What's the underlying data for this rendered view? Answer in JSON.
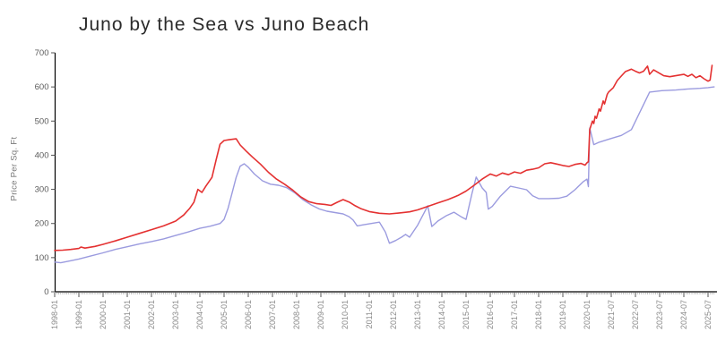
{
  "page": {
    "title": "Juno by the Sea vs Juno Beach"
  },
  "chart_data": {
    "type": "line",
    "title": "Juno by the Sea vs Juno Beach",
    "xlabel": "",
    "ylabel": "Price Per Sq. Ft",
    "ylim": [
      0,
      700
    ],
    "yticks": [
      0,
      100,
      200,
      300,
      400,
      500,
      600,
      700
    ],
    "grid": false,
    "legend": "none",
    "x_tick_labels": [
      "1998-01",
      "1999-01",
      "2000-01",
      "2001-01",
      "2002-01",
      "2003-01",
      "2004-01",
      "2005-01",
      "2006-01",
      "2007-01",
      "2008-01",
      "2009-01",
      "2010-01",
      "2011-01",
      "2012-01",
      "2013-01",
      "2014-01",
      "2015-01",
      "2016-01",
      "2017-01",
      "2018-01",
      "2019-01",
      "2020-01",
      "2021-07",
      "2022-07",
      "2023-07",
      "2024-07",
      "2025-07"
    ],
    "x_axis_note": "monthly axis; 2020-01 to 2021-07 span is compressed (18 months in one label gap)",
    "colors": {
      "axis": "#000000",
      "major_tick": "#555555",
      "minor_tick": "#b3b3b3",
      "tick_label": "#8a8a8a",
      "title": "#2b2b2b"
    },
    "series": [
      {
        "name": "Juno by the Sea",
        "color": "#e43131",
        "points": [
          [
            "1998-01",
            121
          ],
          [
            "1998-05",
            122
          ],
          [
            "1998-09",
            124
          ],
          [
            "1999-01",
            127
          ],
          [
            "1999-02",
            131
          ],
          [
            "1999-04",
            128
          ],
          [
            "1999-09",
            133
          ],
          [
            "2000-01",
            139
          ],
          [
            "2000-07",
            149
          ],
          [
            "2001-01",
            160
          ],
          [
            "2001-07",
            171
          ],
          [
            "2002-01",
            182
          ],
          [
            "2002-07",
            193
          ],
          [
            "2003-01",
            207
          ],
          [
            "2003-05",
            225
          ],
          [
            "2003-08",
            245
          ],
          [
            "2003-10",
            262
          ],
          [
            "2003-12",
            300
          ],
          [
            "2004-02",
            291
          ],
          [
            "2004-04",
            310
          ],
          [
            "2004-07",
            335
          ],
          [
            "2004-09",
            385
          ],
          [
            "2004-11",
            432
          ],
          [
            "2005-01",
            443
          ],
          [
            "2005-04",
            446
          ],
          [
            "2005-07",
            448
          ],
          [
            "2005-09",
            430
          ],
          [
            "2005-12",
            412
          ],
          [
            "2006-03",
            395
          ],
          [
            "2006-07",
            374
          ],
          [
            "2006-11",
            350
          ],
          [
            "2007-03",
            330
          ],
          [
            "2007-07",
            315
          ],
          [
            "2007-11",
            298
          ],
          [
            "2008-03",
            278
          ],
          [
            "2008-07",
            264
          ],
          [
            "2008-11",
            258
          ],
          [
            "2009-03",
            256
          ],
          [
            "2009-06",
            253
          ],
          [
            "2009-09",
            262
          ],
          [
            "2009-12",
            270
          ],
          [
            "2010-03",
            263
          ],
          [
            "2010-06",
            252
          ],
          [
            "2010-09",
            243
          ],
          [
            "2011-01",
            235
          ],
          [
            "2011-06",
            230
          ],
          [
            "2011-11",
            228
          ],
          [
            "2012-04",
            231
          ],
          [
            "2012-09",
            234
          ],
          [
            "2013-01",
            240
          ],
          [
            "2013-06",
            250
          ],
          [
            "2013-11",
            260
          ],
          [
            "2014-04",
            270
          ],
          [
            "2014-09",
            282
          ],
          [
            "2015-01",
            295
          ],
          [
            "2015-05",
            312
          ],
          [
            "2015-09",
            330
          ],
          [
            "2016-01",
            345
          ],
          [
            "2016-04",
            339
          ],
          [
            "2016-07",
            348
          ],
          [
            "2016-10",
            343
          ],
          [
            "2017-01",
            351
          ],
          [
            "2017-04",
            347
          ],
          [
            "2017-07",
            356
          ],
          [
            "2017-10",
            359
          ],
          [
            "2018-01",
            363
          ],
          [
            "2018-04",
            375
          ],
          [
            "2018-07",
            378
          ],
          [
            "2018-10",
            374
          ],
          [
            "2019-01",
            370
          ],
          [
            "2019-04",
            367
          ],
          [
            "2019-07",
            373
          ],
          [
            "2019-10",
            376
          ],
          [
            "2019-12",
            371
          ],
          [
            "2020-01",
            378
          ],
          [
            "2020-02",
            381
          ],
          [
            "2020-03",
            475
          ],
          [
            "2020-05",
            500
          ],
          [
            "2020-06",
            493
          ],
          [
            "2020-07",
            514
          ],
          [
            "2020-08",
            508
          ],
          [
            "2020-10",
            536
          ],
          [
            "2020-11",
            529
          ],
          [
            "2021-01",
            559
          ],
          [
            "2021-02",
            550
          ],
          [
            "2021-04",
            578
          ],
          [
            "2021-05",
            585
          ],
          [
            "2021-08",
            598
          ],
          [
            "2021-10",
            619
          ],
          [
            "2021-12",
            632
          ],
          [
            "2022-02",
            645
          ],
          [
            "2022-05",
            652
          ],
          [
            "2022-07",
            646
          ],
          [
            "2022-09",
            641
          ],
          [
            "2022-11",
            646
          ],
          [
            "2023-01",
            661
          ],
          [
            "2023-02",
            637
          ],
          [
            "2023-04",
            650
          ],
          [
            "2023-06",
            643
          ],
          [
            "2023-09",
            633
          ],
          [
            "2023-12",
            630
          ],
          [
            "2024-03",
            633
          ],
          [
            "2024-07",
            637
          ],
          [
            "2024-09",
            631
          ],
          [
            "2024-11",
            637
          ],
          [
            "2025-01",
            627
          ],
          [
            "2025-03",
            633
          ],
          [
            "2025-05",
            624
          ],
          [
            "2025-07",
            617
          ],
          [
            "2025-08",
            620
          ],
          [
            "2025-09",
            663
          ]
        ]
      },
      {
        "name": "Juno Beach",
        "color": "#9b9bdf",
        "points": [
          [
            "1998-01",
            87
          ],
          [
            "1998-04",
            85
          ],
          [
            "1998-09",
            91
          ],
          [
            "1999-01",
            96
          ],
          [
            "1999-07",
            105
          ],
          [
            "2000-01",
            114
          ],
          [
            "2000-07",
            124
          ],
          [
            "2001-01",
            132
          ],
          [
            "2001-07",
            140
          ],
          [
            "2002-01",
            147
          ],
          [
            "2002-07",
            155
          ],
          [
            "2003-01",
            165
          ],
          [
            "2003-07",
            175
          ],
          [
            "2004-01",
            186
          ],
          [
            "2004-06",
            192
          ],
          [
            "2004-11",
            200
          ],
          [
            "2005-01",
            212
          ],
          [
            "2005-03",
            245
          ],
          [
            "2005-05",
            290
          ],
          [
            "2005-07",
            335
          ],
          [
            "2005-09",
            368
          ],
          [
            "2005-11",
            375
          ],
          [
            "2006-01",
            365
          ],
          [
            "2006-04",
            345
          ],
          [
            "2006-08",
            325
          ],
          [
            "2006-12",
            315
          ],
          [
            "2007-04",
            312
          ],
          [
            "2007-08",
            305
          ],
          [
            "2007-12",
            290
          ],
          [
            "2008-04",
            270
          ],
          [
            "2008-08",
            255
          ],
          [
            "2008-12",
            243
          ],
          [
            "2009-04",
            236
          ],
          [
            "2009-08",
            232
          ],
          [
            "2009-12",
            228
          ],
          [
            "2010-03",
            220
          ],
          [
            "2010-05",
            210
          ],
          [
            "2010-07",
            193
          ],
          [
            "2010-10",
            196
          ],
          [
            "2011-02",
            200
          ],
          [
            "2011-06",
            204
          ],
          [
            "2011-09",
            175
          ],
          [
            "2011-11",
            142
          ],
          [
            "2012-02",
            150
          ],
          [
            "2012-05",
            160
          ],
          [
            "2012-07",
            168
          ],
          [
            "2012-09",
            160
          ],
          [
            "2013-01",
            195
          ],
          [
            "2013-06",
            252
          ],
          [
            "2013-08",
            191
          ],
          [
            "2013-11",
            207
          ],
          [
            "2014-03",
            222
          ],
          [
            "2014-07",
            233
          ],
          [
            "2014-11",
            218
          ],
          [
            "2015-01",
            212
          ],
          [
            "2015-04",
            290
          ],
          [
            "2015-06",
            336
          ],
          [
            "2015-09",
            304
          ],
          [
            "2015-11",
            291
          ],
          [
            "2015-12",
            242
          ],
          [
            "2016-02",
            250
          ],
          [
            "2016-06",
            280
          ],
          [
            "2016-11",
            309
          ],
          [
            "2017-03",
            304
          ],
          [
            "2017-07",
            299
          ],
          [
            "2017-10",
            281
          ],
          [
            "2018-01",
            273
          ],
          [
            "2018-06",
            273
          ],
          [
            "2018-11",
            274
          ],
          [
            "2019-03",
            280
          ],
          [
            "2019-07",
            299
          ],
          [
            "2019-11",
            322
          ],
          [
            "2020-01",
            330
          ],
          [
            "2020-02",
            308
          ],
          [
            "2020-03",
            480
          ],
          [
            "2020-06",
            431
          ],
          [
            "2020-10",
            438
          ],
          [
            "2021-03",
            444
          ],
          [
            "2021-07",
            449
          ],
          [
            "2021-12",
            458
          ],
          [
            "2022-05",
            475
          ],
          [
            "2023-02",
            585
          ],
          [
            "2023-08",
            589
          ],
          [
            "2024-03",
            591
          ],
          [
            "2024-09",
            594
          ],
          [
            "2025-03",
            596
          ],
          [
            "2025-07",
            598
          ],
          [
            "2025-10",
            600
          ]
        ]
      }
    ]
  }
}
